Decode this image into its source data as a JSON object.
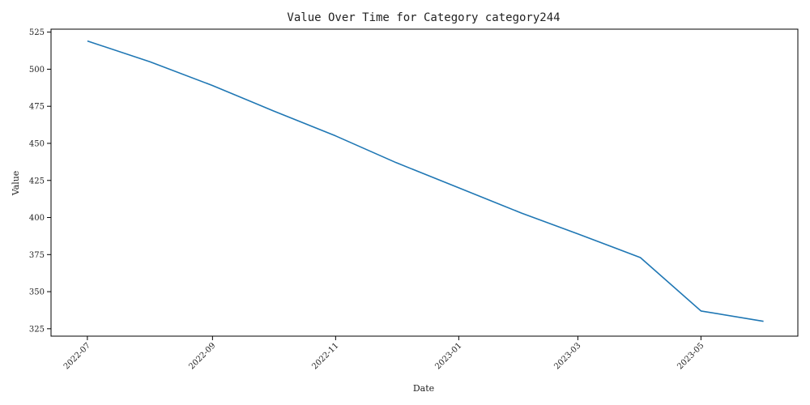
{
  "chart_data": {
    "type": "line",
    "title": "Value Over Time for Category category244",
    "xlabel": "Date",
    "ylabel": "Value",
    "x_ticks": [
      "2022-07",
      "2022-09",
      "2022-11",
      "2023-01",
      "2023-03",
      "2023-05"
    ],
    "y_ticks": [
      325,
      350,
      375,
      400,
      425,
      450,
      475,
      500,
      525
    ],
    "ylim": [
      320,
      527
    ],
    "xlim": [
      "2022-06-13",
      "2023-06-18"
    ],
    "grid": false,
    "legend": "none",
    "series": [
      {
        "color": "#1f77b4",
        "points": [
          {
            "x": "2022-07-01",
            "y": 519
          },
          {
            "x": "2022-08-01",
            "y": 505
          },
          {
            "x": "2022-09-01",
            "y": 489
          },
          {
            "x": "2022-10-01",
            "y": 472
          },
          {
            "x": "2022-11-01",
            "y": 455
          },
          {
            "x": "2022-12-01",
            "y": 437
          },
          {
            "x": "2023-01-01",
            "y": 420
          },
          {
            "x": "2023-02-01",
            "y": 403
          },
          {
            "x": "2023-03-01",
            "y": 389
          },
          {
            "x": "2023-04-01",
            "y": 373
          },
          {
            "x": "2023-05-01",
            "y": 337
          },
          {
            "x": "2023-06-01",
            "y": 330
          }
        ]
      }
    ]
  }
}
